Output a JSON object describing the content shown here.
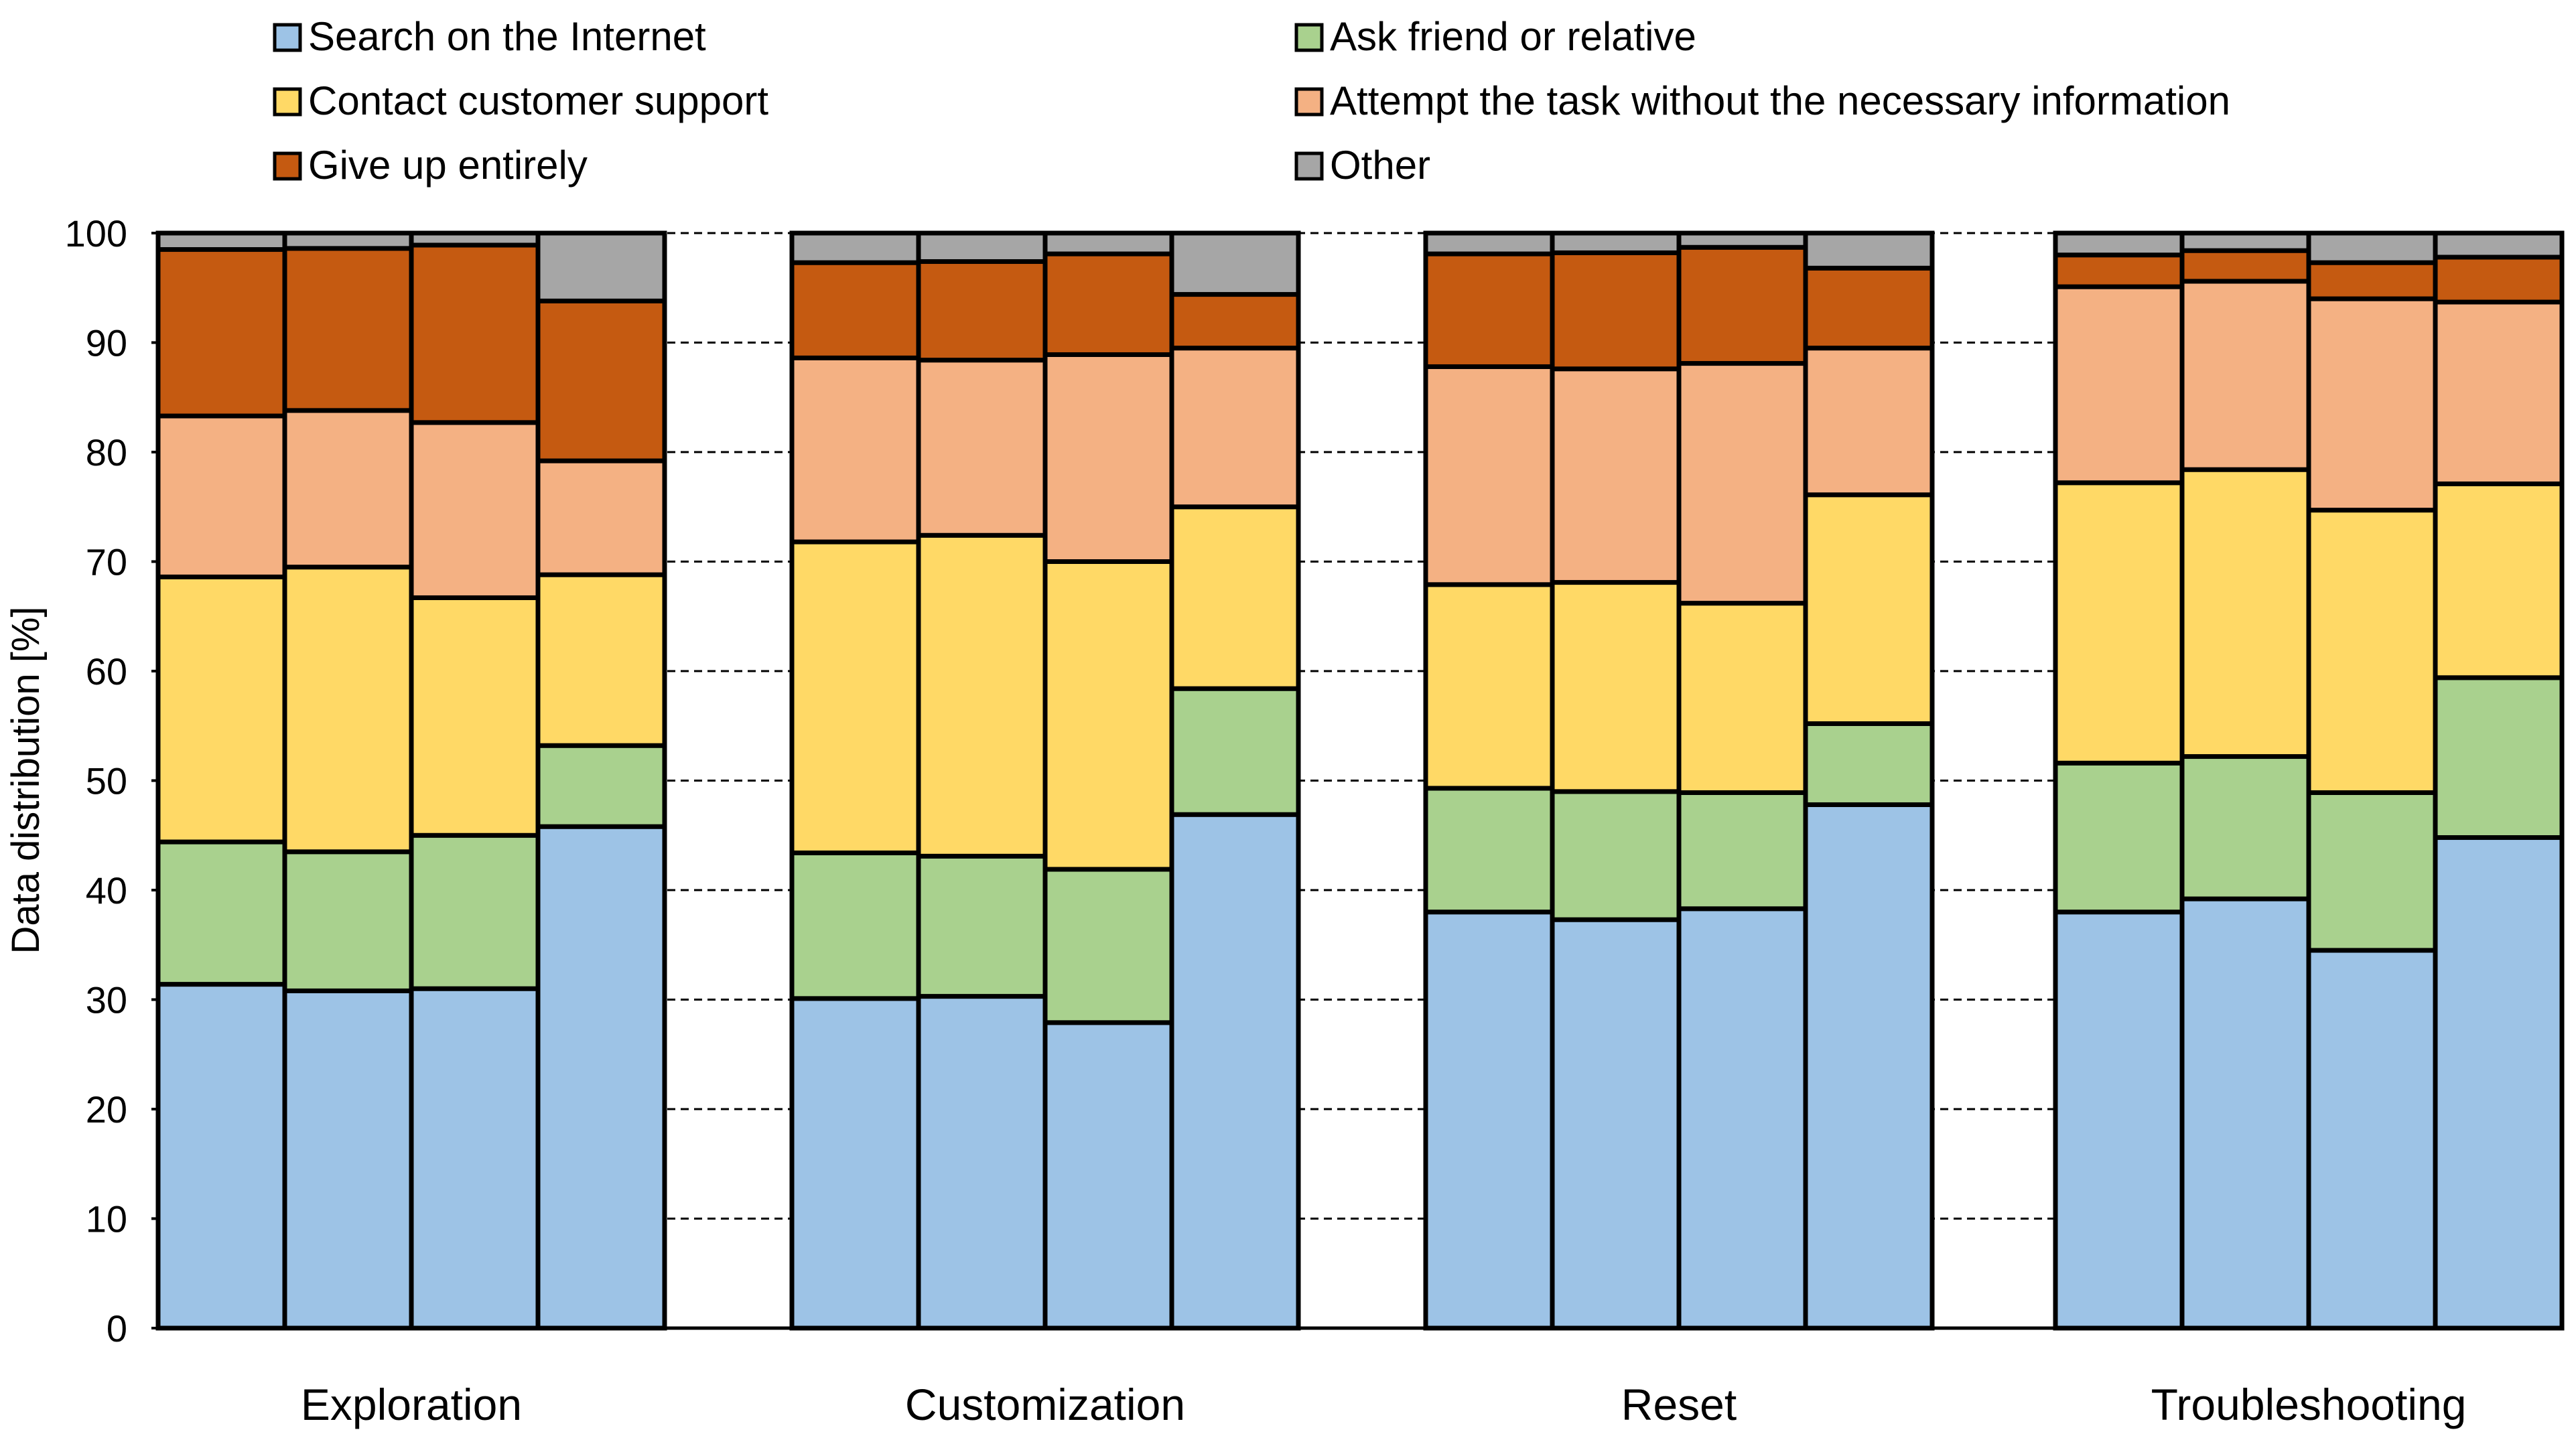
{
  "chart_data": {
    "type": "bar",
    "stacked": true,
    "title": "",
    "xlabel": "",
    "ylabel": "Data distribution [%]",
    "ylim": [
      0,
      100
    ],
    "yticks": [
      "0",
      "10",
      "20",
      "30",
      "40",
      "50",
      "60",
      "70",
      "80",
      "90",
      "100"
    ],
    "grid": "dashed horizontal",
    "legend_position": "top",
    "groups": [
      "Exploration",
      "Customization",
      "Reset",
      "Troubleshooting"
    ],
    "bars_per_group": 4,
    "series": [
      {
        "name": "Search on the Internet",
        "color": "#9DC3E6",
        "values": [
          [
            31.4,
            30.8,
            31.0,
            45.8
          ],
          [
            30.1,
            30.3,
            27.9,
            46.9
          ],
          [
            38.0,
            37.3,
            38.3,
            47.8
          ],
          [
            38.0,
            39.2,
            34.5,
            44.8
          ]
        ]
      },
      {
        "name": "Ask friend or relative",
        "color": "#A9D18E",
        "values": [
          [
            13.0,
            12.7,
            14.0,
            7.4
          ],
          [
            13.3,
            12.8,
            14.0,
            11.5
          ],
          [
            11.3,
            11.7,
            10.6,
            7.4
          ],
          [
            13.6,
            13.0,
            14.4,
            14.6
          ]
        ]
      },
      {
        "name": "Contact customer support",
        "color": "#FFD966",
        "values": [
          [
            24.2,
            26.0,
            21.7,
            15.6
          ],
          [
            28.4,
            29.3,
            28.1,
            16.6
          ],
          [
            18.6,
            19.1,
            17.3,
            20.9
          ],
          [
            25.6,
            26.2,
            25.8,
            17.7
          ]
        ]
      },
      {
        "name": "Attempt the task without the necessary information",
        "color": "#F4B183",
        "values": [
          [
            14.7,
            14.3,
            16.0,
            10.4
          ],
          [
            16.8,
            16.0,
            18.9,
            14.5
          ],
          [
            19.9,
            19.5,
            21.9,
            13.4
          ],
          [
            17.9,
            17.2,
            19.3,
            16.6
          ]
        ]
      },
      {
        "name": "Give up entirely",
        "color": "#C55A11",
        "values": [
          [
            15.2,
            14.8,
            16.2,
            14.6
          ],
          [
            8.7,
            9.0,
            9.2,
            4.9
          ],
          [
            10.3,
            10.6,
            10.6,
            7.3
          ],
          [
            2.9,
            2.8,
            3.3,
            4.1
          ]
        ]
      },
      {
        "name": "Other",
        "color": "#A6A6A6",
        "values": [
          [
            1.5,
            1.4,
            1.1,
            6.2
          ],
          [
            2.7,
            2.6,
            1.9,
            5.6
          ],
          [
            1.9,
            1.8,
            1.3,
            3.2
          ],
          [
            2.0,
            1.6,
            2.7,
            2.2
          ]
        ]
      }
    ]
  }
}
